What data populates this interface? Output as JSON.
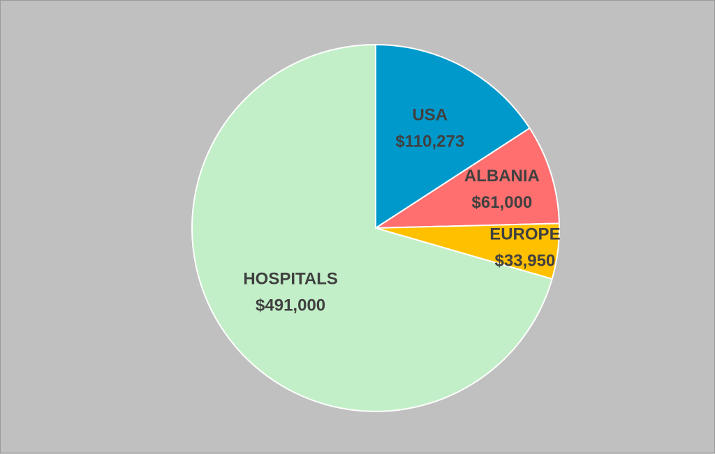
{
  "chart_data": {
    "type": "pie",
    "title": "",
    "categories": [
      "USA",
      "ALBANIA",
      "EUROPE",
      "HOSPITALS"
    ],
    "values": [
      110273,
      61000,
      33950,
      491000
    ],
    "value_labels": [
      "$110,273",
      "$61,000",
      "$33,950",
      "$491,000"
    ],
    "colors": [
      "#0099cc",
      "#ff6f6f",
      "#ffc000",
      "#c3efc8"
    ],
    "start_angle": "12 o'clock",
    "direction": "clockwise",
    "legend": "none",
    "data_labels": "category name and value inside slice"
  },
  "style": {
    "background": "#c0c0c0",
    "slice_border": "#ffffff",
    "label_color": "#404040"
  }
}
